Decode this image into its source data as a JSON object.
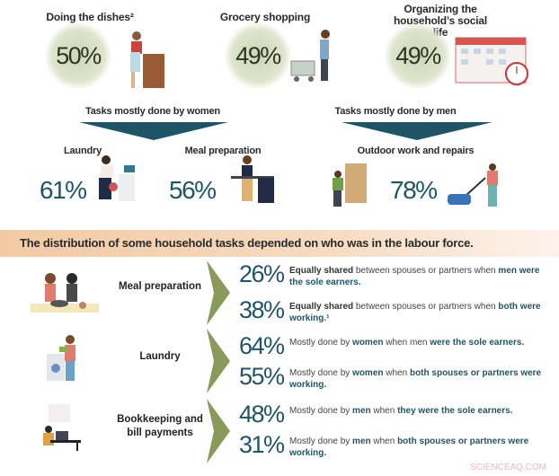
{
  "top_tasks": [
    {
      "label": "Doing the dishes²",
      "value": "50%",
      "icon": "dishwashing-person-icon"
    },
    {
      "label": "Grocery shopping",
      "value": "49%",
      "icon": "shopping-cart-person-icon"
    },
    {
      "label": "Organizing the household’s social life",
      "value": "49%",
      "icon": "calendar-clock-icon"
    }
  ],
  "women": {
    "heading": "Tasks mostly done by women",
    "tasks": [
      {
        "label": "Laundry",
        "value": "61%"
      },
      {
        "label": "Meal preparation",
        "value": "56%"
      }
    ]
  },
  "men": {
    "heading": "Tasks mostly done by men",
    "tasks": [
      {
        "label": "Outdoor work and repairs",
        "value": "78%"
      }
    ]
  },
  "banner": "The distribution of some household tasks depended on who was in the labour force.",
  "colors": {
    "teal": "#1f5568",
    "arrow": "#1e5466",
    "chevron": "#8a9a5b",
    "banner": "#f2c9a3"
  },
  "rows": [
    {
      "label": "Meal preparation",
      "stats": [
        {
          "value": "26%",
          "segments": [
            {
              "t": "Equally shared",
              "s": "b"
            },
            {
              "t": " between spouses or partners when ",
              "s": ""
            },
            {
              "t": "men were the sole earners.",
              "s": "em"
            }
          ]
        },
        {
          "value": "38%",
          "segments": [
            {
              "t": "Equally shared",
              "s": "b"
            },
            {
              "t": " between spouses or partners when ",
              "s": ""
            },
            {
              "t": "both were working.¹",
              "s": "em"
            }
          ]
        }
      ]
    },
    {
      "label": "Laundry",
      "stats": [
        {
          "value": "64%",
          "segments": [
            {
              "t": "Mostly done by ",
              "s": ""
            },
            {
              "t": "women",
              "s": "em"
            },
            {
              "t": " when men ",
              "s": ""
            },
            {
              "t": "were the sole earners.",
              "s": "em"
            }
          ]
        },
        {
          "value": "55%",
          "segments": [
            {
              "t": "Mostly done by ",
              "s": ""
            },
            {
              "t": "women",
              "s": "em"
            },
            {
              "t": " when ",
              "s": ""
            },
            {
              "t": "both spouses or partners were working.",
              "s": "em"
            }
          ]
        }
      ]
    },
    {
      "label": "Bookkeeping and bill payments",
      "stats": [
        {
          "value": "48%",
          "segments": [
            {
              "t": "Mostly done by ",
              "s": ""
            },
            {
              "t": "men",
              "s": "em"
            },
            {
              "t": " when ",
              "s": ""
            },
            {
              "t": "they were the sole earners.",
              "s": "em"
            }
          ]
        },
        {
          "value": "31%",
          "segments": [
            {
              "t": "Mostly done by ",
              "s": ""
            },
            {
              "t": "men",
              "s": "em"
            },
            {
              "t": " when ",
              "s": ""
            },
            {
              "t": "both spouses or partners were working.",
              "s": "em"
            }
          ]
        }
      ]
    }
  ],
  "watermark": "SCIENCEAQ.COM"
}
